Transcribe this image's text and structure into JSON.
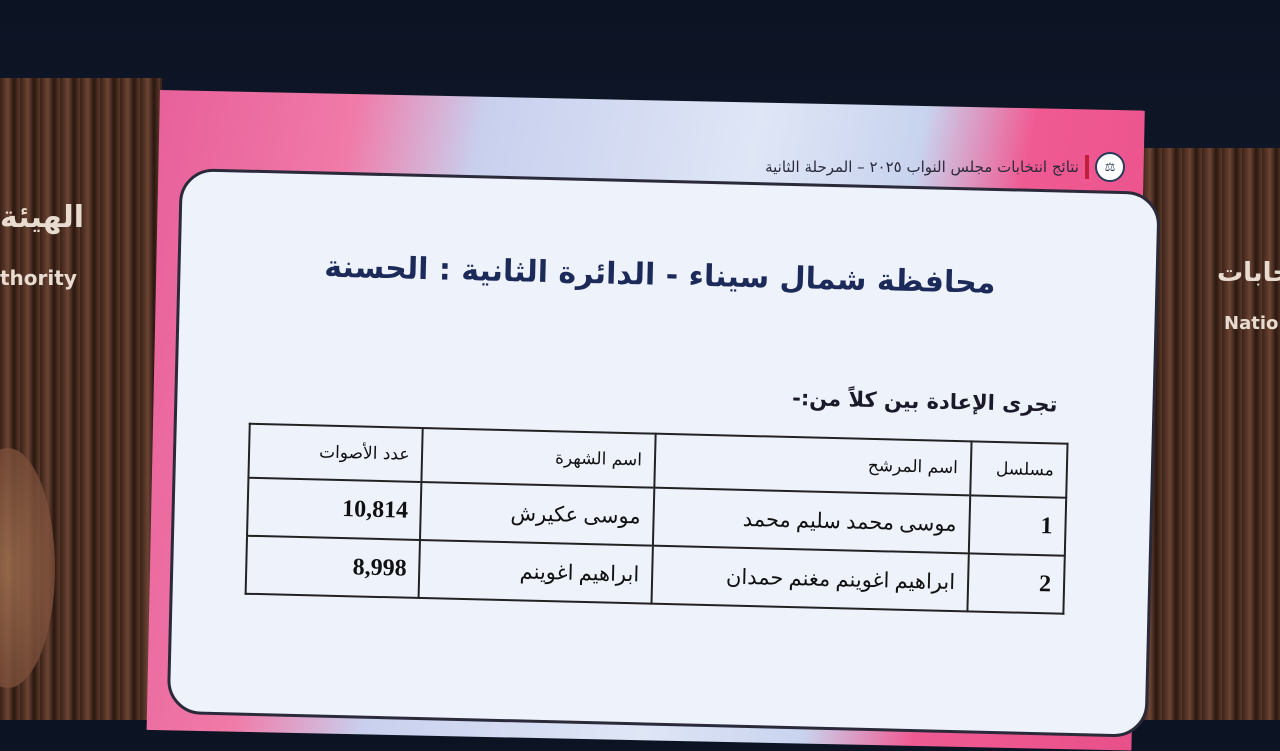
{
  "background": {
    "left_panel_text_ar": "الهيئة",
    "left_panel_text_en": "thority",
    "right_panel_text_ar": "نتخابات",
    "right_panel_text_en": "Natio"
  },
  "header": {
    "title": "نتائج انتخابات مجلس النواب ٢٠٢٥ – المرحلة الثانية",
    "accent": "#c0203a",
    "logo_icon": "scales-emblem-icon"
  },
  "slide": {
    "title": "محافظة شمال سيناء - الدائرة الثانية : الحسنة",
    "intro": "تجرى الإعادة بين كلاً من:-",
    "table": {
      "headers": [
        "مسلسل",
        "اسم المرشح",
        "اسم الشهرة",
        "عدد الأصوات"
      ],
      "rows": [
        [
          "1",
          "موسى محمد سليم محمد",
          "موسى عكيرش",
          "10,814"
        ],
        [
          "2",
          "ابراهيم اغوينم مغنم حمدان",
          "ابراهيم اغوينم",
          "8,998"
        ]
      ]
    }
  }
}
